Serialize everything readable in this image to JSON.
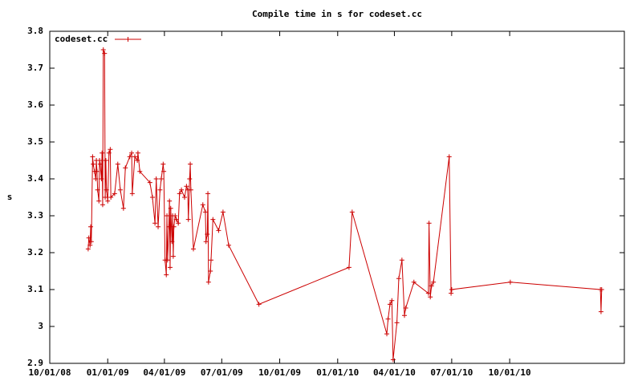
{
  "chart_data": {
    "type": "line",
    "title": "Compile time in s for codeset.cc",
    "ylabel": "s",
    "x": [
      "12/01/08",
      "12/02/08",
      "12/04/08",
      "12/05/08",
      "12/06/08",
      "12/08/08",
      "12/09/08",
      "12/11/08",
      "12/13/08",
      "12/14/08",
      "12/15/08",
      "12/16/08",
      "12/18/08",
      "12/19/08",
      "12/20/08",
      "12/22/08",
      "12/23/08",
      "12/24/08",
      "12/25/08",
      "12/27/08",
      "12/28/08",
      "12/29/08",
      "12/30/08",
      "01/01/09",
      "01/03/09",
      "01/05/09",
      "01/06/09",
      "01/12/09",
      "01/17/09",
      "01/21/09",
      "01/26/09",
      "01/29/09",
      "02/05/09",
      "02/08/09",
      "02/09/09",
      "02/13/09",
      "02/17/09",
      "02/18/09",
      "02/21/09",
      "03/09/09",
      "03/13/09",
      "03/17/09",
      "03/19/09",
      "03/22/09",
      "03/25/09",
      "03/27/09",
      "03/30/09",
      "03/31/09",
      "04/02/09",
      "04/04/09",
      "04/05/09",
      "04/06/09",
      "04/08/09",
      "04/09/09",
      "04/10/09",
      "04/11/09",
      "04/13/09",
      "04/14/09",
      "04/15/09",
      "04/16/09",
      "04/18/09",
      "04/20/09",
      "04/23/09",
      "04/25/09",
      "04/28/09",
      "05/03/09",
      "05/06/09",
      "05/08/09",
      "05/09/09",
      "05/11/09",
      "05/12/09",
      "05/13/09",
      "05/17/09",
      "06/01/09",
      "06/05/09",
      "06/06/09",
      "06/08/09",
      "06/09/09",
      "06/10/09",
      "06/13/09",
      "06/14/09",
      "06/17/09",
      "06/26/09",
      "07/03/09",
      "07/12/09",
      "08/29/09",
      "01/19/10",
      "01/24/10",
      "03/20/10",
      "03/22/10",
      "03/25/10",
      "03/28/10",
      "03/30/10",
      "04/05/10",
      "04/08/10",
      "04/13/10",
      "04/17/10",
      "04/19/10",
      "05/02/10",
      "05/25/10",
      "05/26/10",
      "05/28/10",
      "05/30/10",
      "06/02/10",
      "06/27/10",
      "06/30/10",
      "07/01/10",
      "10/02/10",
      "02/22/11",
      "02/23/11",
      "02/24/11"
    ],
    "series": [
      {
        "name": "codeset.cc",
        "color": "#cc0000",
        "values": [
          3.21,
          3.24,
          3.22,
          3.27,
          3.23,
          3.46,
          3.44,
          3.42,
          3.4,
          3.45,
          3.42,
          3.37,
          3.34,
          3.45,
          3.44,
          3.4,
          3.47,
          3.33,
          3.75,
          3.74,
          3.35,
          3.45,
          3.37,
          3.34,
          3.47,
          3.48,
          3.35,
          3.36,
          3.44,
          3.37,
          3.32,
          3.43,
          3.46,
          3.47,
          3.36,
          3.46,
          3.45,
          3.47,
          3.42,
          3.39,
          3.35,
          3.28,
          3.4,
          3.27,
          3.37,
          3.4,
          3.44,
          3.42,
          3.18,
          3.14,
          3.3,
          3.18,
          3.27,
          3.34,
          3.16,
          3.32,
          3.23,
          3.3,
          3.19,
          3.27,
          3.3,
          3.29,
          3.28,
          3.36,
          3.37,
          3.35,
          3.38,
          3.37,
          3.29,
          3.4,
          3.44,
          3.37,
          3.21,
          3.33,
          3.31,
          3.23,
          3.25,
          3.36,
          3.12,
          3.15,
          3.18,
          3.29,
          3.26,
          3.31,
          3.22,
          3.06,
          3.16,
          3.31,
          2.98,
          3.02,
          3.06,
          3.07,
          2.91,
          3.01,
          3.13,
          3.18,
          3.03,
          3.05,
          3.12,
          3.09,
          3.28,
          3.08,
          3.11,
          3.12,
          3.46,
          3.09,
          3.1,
          3.12,
          3.1,
          3.04,
          3.1
        ]
      }
    ],
    "xlim": [
      "10/01/08",
      "04/01/11"
    ],
    "xticks": [
      "10/01/08",
      "01/01/09",
      "04/01/09",
      "07/01/09",
      "10/01/09",
      "01/01/10",
      "04/01/10",
      "07/01/10",
      "10/01/10"
    ],
    "ylim": [
      2.9,
      3.8
    ],
    "yticks": [
      2.9,
      3,
      3.1,
      3.2,
      3.3,
      3.4,
      3.5,
      3.6,
      3.7,
      3.8
    ],
    "legend": "top-left"
  }
}
